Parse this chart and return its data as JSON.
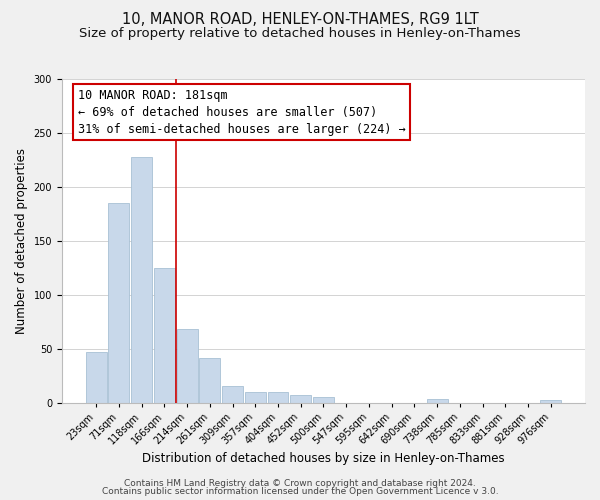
{
  "title": "10, MANOR ROAD, HENLEY-ON-THAMES, RG9 1LT",
  "subtitle": "Size of property relative to detached houses in Henley-on-Thames",
  "xlabel": "Distribution of detached houses by size in Henley-on-Thames",
  "ylabel": "Number of detached properties",
  "bar_labels": [
    "23sqm",
    "71sqm",
    "118sqm",
    "166sqm",
    "214sqm",
    "261sqm",
    "309sqm",
    "357sqm",
    "404sqm",
    "452sqm",
    "500sqm",
    "547sqm",
    "595sqm",
    "642sqm",
    "690sqm",
    "738sqm",
    "785sqm",
    "833sqm",
    "881sqm",
    "928sqm",
    "976sqm"
  ],
  "bar_heights": [
    47,
    185,
    228,
    125,
    68,
    41,
    15,
    10,
    10,
    7,
    5,
    0,
    0,
    0,
    0,
    3,
    0,
    0,
    0,
    0,
    2
  ],
  "bar_color": "#c8d8ea",
  "bar_edge_color": "#a8c0d4",
  "vline_x": 3.5,
  "vline_color": "#cc0000",
  "annotation_title": "10 MANOR ROAD: 181sqm",
  "annotation_line1": "← 69% of detached houses are smaller (507)",
  "annotation_line2": "31% of semi-detached houses are larger (224) →",
  "annotation_box_color": "#ffffff",
  "annotation_box_edge": "#cc0000",
  "ylim": [
    0,
    300
  ],
  "yticks": [
    0,
    50,
    100,
    150,
    200,
    250,
    300
  ],
  "footer1": "Contains HM Land Registry data © Crown copyright and database right 2024.",
  "footer2": "Contains public sector information licensed under the Open Government Licence v 3.0.",
  "bg_color": "#f0f0f0",
  "plot_bg_color": "#ffffff",
  "title_fontsize": 10.5,
  "subtitle_fontsize": 9.5,
  "axis_label_fontsize": 8.5,
  "tick_fontsize": 7,
  "footer_fontsize": 6.5,
  "annotation_fontsize": 8.5
}
